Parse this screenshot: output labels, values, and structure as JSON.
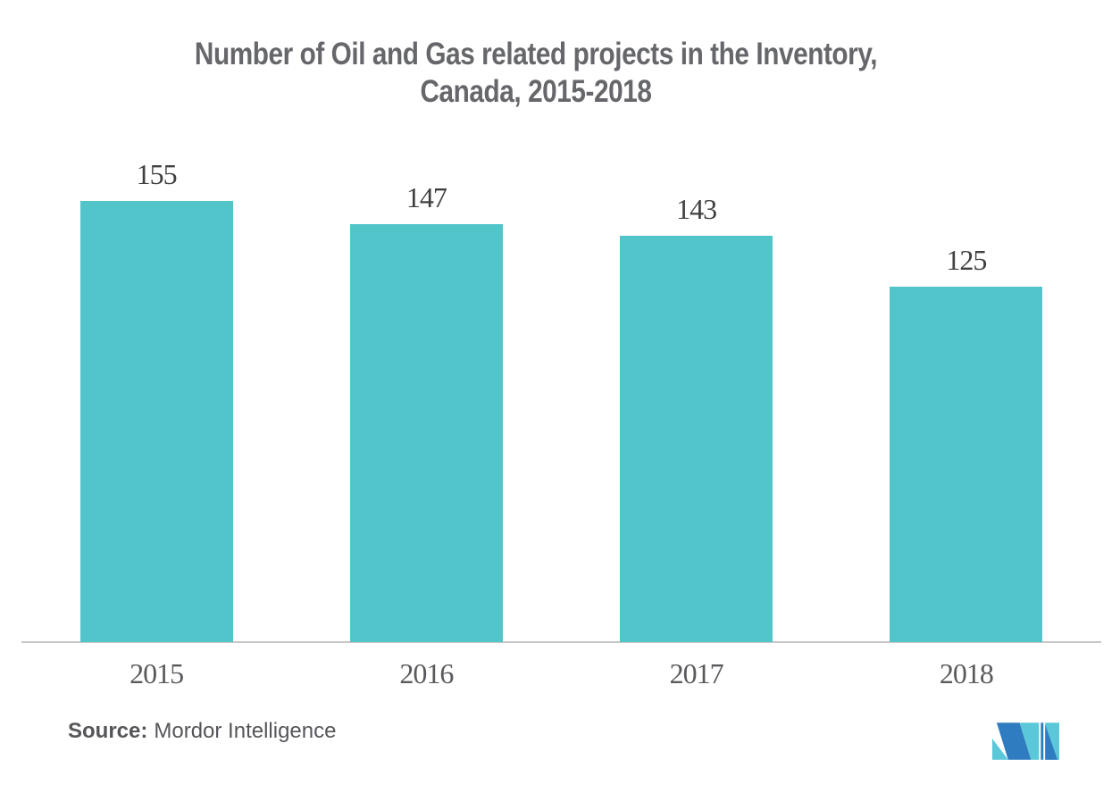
{
  "title": {
    "line1": "Number of Oil and Gas related projects in the Inventory,",
    "line2": "Canada, 2015-2018"
  },
  "chart_data": {
    "type": "bar",
    "title": "Number of Oil and Gas related projects in the Inventory, Canada, 2015-2018",
    "categories": [
      "2015",
      "2016",
      "2017",
      "2018"
    ],
    "values": [
      155,
      147,
      143,
      125
    ],
    "xlabel": "",
    "ylabel": "",
    "y_baseline": 0,
    "grid": false,
    "y_axis_visible": false,
    "value_labels_visible": true,
    "legend": "none",
    "bar_color": "#52C5CB",
    "value_label_color": "#3F4042",
    "category_label_color": "#595A5D",
    "axis_line_color": "#C9C6C6",
    "title_color": "#66676B"
  },
  "source": {
    "label": "Source:",
    "text": "Mordor Intelligence"
  },
  "logo": {
    "name": "Mordor Intelligence logo",
    "colors": {
      "blue": "#2F7DC0",
      "teal": "#5AC8D8"
    }
  }
}
